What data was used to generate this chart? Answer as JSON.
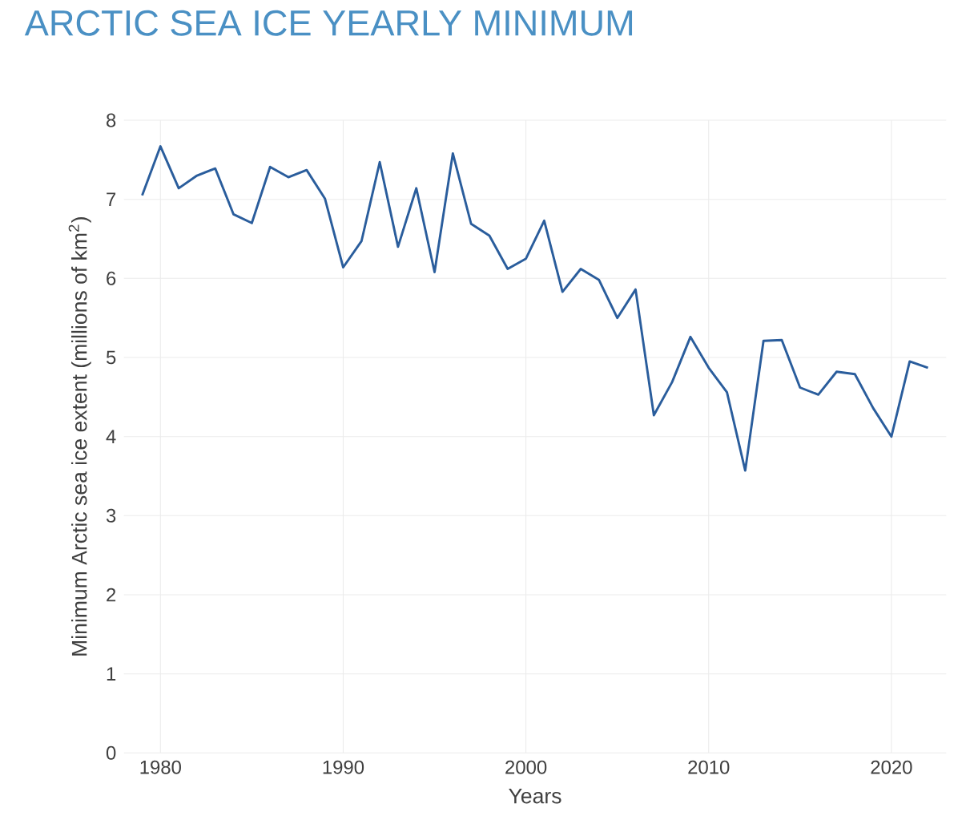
{
  "chart_data": {
    "type": "line",
    "title": "ARCTIC SEA ICE YEARLY MINIMUM",
    "xlabel": "Years",
    "ylabel": "Minimum Arctic sea ice extent (millions of km$^{2}$)",
    "x": [
      1979,
      1980,
      1981,
      1982,
      1983,
      1984,
      1985,
      1986,
      1987,
      1988,
      1989,
      1990,
      1991,
      1992,
      1993,
      1994,
      1995,
      1996,
      1997,
      1998,
      1999,
      2000,
      2001,
      2002,
      2003,
      2004,
      2005,
      2006,
      2007,
      2008,
      2009,
      2010,
      2011,
      2012,
      2013,
      2014,
      2015,
      2016,
      2017,
      2018,
      2019,
      2020,
      2021,
      2022
    ],
    "series": [
      {
        "color": "#2a5d9c",
        "values": [
          7.05,
          7.67,
          7.14,
          7.3,
          7.39,
          6.81,
          6.7,
          7.41,
          7.28,
          7.37,
          7.01,
          6.14,
          6.47,
          7.47,
          6.4,
          7.14,
          6.08,
          7.58,
          6.69,
          6.54,
          6.12,
          6.25,
          6.73,
          5.83,
          6.12,
          5.98,
          5.5,
          5.86,
          4.27,
          4.69,
          5.26,
          4.87,
          4.56,
          3.57,
          5.21,
          5.22,
          4.62,
          4.53,
          4.82,
          4.79,
          4.36,
          4.0,
          4.95,
          4.87
        ]
      }
    ],
    "xlim": [
      1978,
      2023
    ],
    "ylim": [
      0,
      8
    ],
    "xticks": [
      1980,
      1990,
      2000,
      2010,
      2020
    ],
    "yticks": [
      0,
      1,
      2,
      3,
      4,
      5,
      6,
      7,
      8
    ],
    "grid": true,
    "marker": "none",
    "line_style": "solid"
  }
}
